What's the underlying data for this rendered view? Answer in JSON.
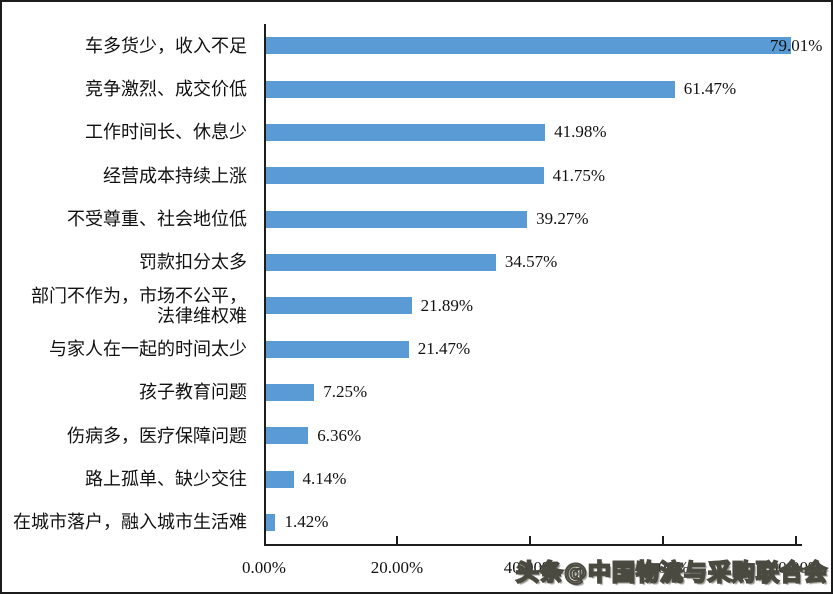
{
  "chart_data": {
    "type": "bar",
    "orientation": "horizontal",
    "title": "",
    "xlabel": "",
    "ylabel": "",
    "xlim": [
      0,
      80
    ],
    "grid": false,
    "legend": null,
    "bar_color": "#5b9bd5",
    "categories": [
      "车多货少，收入不足",
      "竞争激烈、成交价低",
      "工作时间长、休息少",
      "经营成本持续上涨",
      "不受尊重、社会地位低",
      "罚款扣分太多",
      "部门不作为，市场不公平，\n法律维权难",
      "与家人在一起的时间太少",
      "孩子教育问题",
      "伤病多，医疗保障问题",
      "路上孤单、缺少交往",
      "在城市落户，融入城市生活难"
    ],
    "values": [
      79.01,
      61.47,
      41.98,
      41.75,
      39.27,
      34.57,
      21.89,
      21.47,
      7.25,
      6.36,
      4.14,
      1.42
    ],
    "value_labels": [
      "79.01%",
      "61.47%",
      "41.98%",
      "41.75%",
      "39.27%",
      "34.57%",
      "21.89%",
      "21.47%",
      "7.25%",
      "6.36%",
      "4.14%",
      "1.42%"
    ],
    "x_ticks": [
      "0.00%",
      "20.00%",
      "40.00%",
      "60.00%",
      "80.00%"
    ]
  },
  "watermark": {
    "text": "头条@中国物流与采购联合会"
  }
}
